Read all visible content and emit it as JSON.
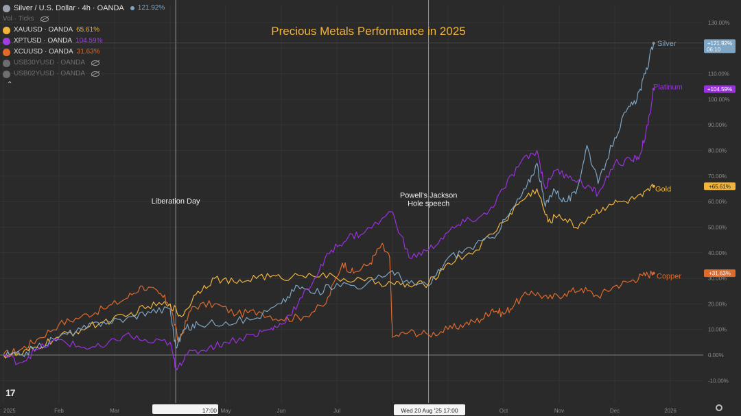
{
  "window": {
    "symbol_title": "Silver / U.S. Dollar · 4h · OANDA",
    "symbol_change": "121.92%",
    "vol_ticks_label": "Vol · Ticks"
  },
  "legend": [
    {
      "symbol": "XAUUSD · OANDA",
      "value": "65.61%",
      "color": "#f2b53b",
      "muted": false
    },
    {
      "symbol": "XPTUSD · OANDA",
      "value": "104.59%",
      "color": "#a03ee0",
      "muted": false
    },
    {
      "symbol": "XCUUSD · OANDA",
      "value": "31.63%",
      "color": "#e06a2a",
      "muted": false
    },
    {
      "symbol": "USB30YUSD · OANDA",
      "value": "",
      "color": "#6e6e6e",
      "muted": true
    },
    {
      "symbol": "USB02YUSD · OANDA",
      "value": "",
      "color": "#6e6e6e",
      "muted": true
    }
  ],
  "colors": {
    "background": "#2a2a2b",
    "silver": "#7fa6c4",
    "platinum": "#9b30e0",
    "gold": "#f0b43c",
    "copper": "#e06a2a",
    "title": "#f0b43c",
    "grid": "#343436",
    "axis_text": "#8a8a8a"
  },
  "crosshair": {
    "date_label": "Wed 20 Aug '25   17:00",
    "time_fragment": "17:00"
  },
  "chart_data": {
    "type": "line",
    "title": "Precious Metals Performance in 2025",
    "xlabel": "",
    "ylabel": "",
    "y_unit": "%",
    "ylim": [
      -10,
      130
    ],
    "ytick_values": [
      -10,
      0,
      10,
      20,
      30,
      40,
      50,
      60,
      70,
      80,
      90,
      100,
      110,
      120,
      130
    ],
    "ytick_labels": [
      "-10.00%",
      "0.00%",
      "10.00%",
      "20.00%",
      "30.00%",
      "40.00%",
      "50.00%",
      "60.00%",
      "70.00%",
      "80.00%",
      "90.00%",
      "100.00%",
      "110.00%",
      "120.00%",
      "130.00%"
    ],
    "x_unit": "months since Jan 1 2025",
    "xlim": [
      0,
      12.2
    ],
    "xtick_values": [
      0,
      1,
      2,
      3,
      4,
      5,
      6,
      7,
      8,
      9,
      10,
      11,
      12
    ],
    "xtick_labels": [
      "2025",
      "Feb",
      "Mar",
      "",
      "May",
      "Jun",
      "Jul",
      "",
      "",
      "Oct",
      "Nov",
      "Dec",
      "2026"
    ],
    "annotations": [
      {
        "x": 3.1,
        "y": 60,
        "text": "Liberation Day",
        "vline": true
      },
      {
        "x": 7.65,
        "y": 61,
        "text": "Powell's Jackson Hole speech",
        "vline": true
      }
    ],
    "series": [
      {
        "name": "Silver",
        "end_label": "+121.92%",
        "end_sublabel": "06:10",
        "color_key": "silver",
        "x": [
          0,
          0.3,
          0.6,
          1.0,
          1.4,
          1.8,
          2.2,
          2.6,
          3.0,
          3.1,
          3.25,
          3.5,
          4.0,
          4.5,
          5.0,
          5.3,
          5.6,
          6.0,
          6.5,
          7.0,
          7.3,
          7.65,
          8.0,
          8.4,
          8.8,
          9.1,
          9.4,
          9.6,
          9.75,
          9.9,
          10.1,
          10.3,
          10.5,
          10.7,
          11.0,
          11.2,
          11.4,
          11.55,
          11.7
        ],
        "y": [
          0,
          0,
          3,
          7,
          10,
          13,
          14,
          17,
          18,
          3,
          10,
          12,
          13,
          14,
          20,
          27,
          24,
          28,
          27,
          33,
          28,
          27,
          38,
          42,
          46,
          55,
          65,
          75,
          58,
          65,
          60,
          63,
          82,
          67,
          85,
          95,
          100,
          110,
          122
        ]
      },
      {
        "name": "Platinum",
        "end_label": "+104.59%",
        "color_key": "platinum",
        "x": [
          0,
          0.3,
          0.6,
          1.0,
          1.4,
          1.8,
          2.2,
          2.6,
          3.0,
          3.1,
          3.3,
          3.7,
          4.0,
          4.5,
          4.8,
          5.0,
          5.3,
          5.6,
          5.9,
          6.2,
          6.5,
          7.0,
          7.3,
          7.65,
          8.0,
          8.3,
          8.7,
          9.0,
          9.3,
          9.6,
          9.75,
          9.9,
          10.2,
          10.5,
          10.7,
          11.0,
          11.3,
          11.45,
          11.6,
          11.7
        ],
        "y": [
          0,
          -3,
          2,
          6,
          3,
          3,
          8,
          5,
          5,
          -5,
          0,
          3,
          5,
          8,
          10,
          12,
          20,
          30,
          41,
          46,
          48,
          56,
          38,
          41,
          48,
          52,
          55,
          65,
          75,
          80,
          65,
          72,
          70,
          66,
          63,
          75,
          76,
          78,
          90,
          104
        ]
      },
      {
        "name": "Gold",
        "end_label": "+65.61%",
        "color_key": "gold",
        "x": [
          0,
          0.3,
          0.6,
          1.0,
          1.4,
          1.8,
          2.2,
          2.6,
          3.0,
          3.2,
          3.5,
          3.8,
          4.2,
          4.6,
          5.0,
          5.5,
          6.0,
          6.5,
          7.0,
          7.3,
          7.65,
          8.0,
          8.5,
          9.0,
          9.3,
          9.6,
          9.8,
          10.0,
          10.3,
          10.6,
          10.9,
          11.2,
          11.5,
          11.7
        ],
        "y": [
          0,
          0,
          3,
          7,
          10,
          13,
          15,
          19,
          20,
          15,
          25,
          30,
          28,
          31,
          30,
          32,
          30,
          29,
          28,
          27,
          28,
          36,
          41,
          52,
          60,
          65,
          52,
          55,
          50,
          55,
          59,
          60,
          62,
          66
        ]
      },
      {
        "name": "Copper",
        "end_label": "+31.63%",
        "color_key": "copper",
        "x": [
          0,
          0.3,
          0.6,
          1.0,
          1.4,
          1.8,
          2.2,
          2.5,
          2.8,
          3.0,
          3.15,
          3.4,
          3.8,
          4.2,
          4.6,
          5.0,
          5.4,
          5.8,
          6.1,
          6.3,
          6.6,
          6.8,
          6.95,
          7.0,
          7.3,
          7.65,
          8.0,
          8.3,
          8.6,
          8.8,
          9.0,
          9.2,
          9.5,
          9.8,
          10.1,
          10.4,
          10.7,
          11.0,
          11.3,
          11.5,
          11.7
        ],
        "y": [
          0,
          2,
          6,
          12,
          15,
          18,
          22,
          27,
          24,
          20,
          5,
          19,
          20,
          16,
          17,
          14,
          15,
          20,
          36,
          32,
          36,
          43,
          38,
          7,
          9,
          8,
          10,
          12,
          14,
          18,
          16,
          20,
          25,
          22,
          24,
          26,
          23,
          27,
          29,
          31,
          32
        ]
      }
    ]
  }
}
